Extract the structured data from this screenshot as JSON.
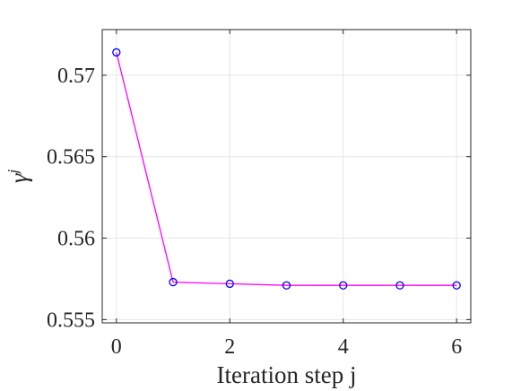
{
  "chart_data": {
    "type": "line",
    "title": "",
    "xlabel": "Iteration step j",
    "ylabel": "γ",
    "ylabel_superscript": "j",
    "xlim": [
      -0.25,
      6.25
    ],
    "ylim": [
      0.5548,
      0.5728
    ],
    "x_ticks": [
      0,
      2,
      4,
      6
    ],
    "x_tick_labels": [
      "0",
      "2",
      "4",
      "6"
    ],
    "y_ticks": [
      0.555,
      0.56,
      0.565,
      0.57
    ],
    "y_tick_labels": [
      "0.555",
      "0.56",
      "0.565",
      "0.57"
    ],
    "grid": true,
    "series": [
      {
        "x": [
          0,
          1,
          2,
          3,
          4,
          5,
          6
        ],
        "y": [
          0.5714,
          0.5573,
          0.5572,
          0.5571,
          0.5571,
          0.5571,
          0.5571
        ],
        "line_color": "#ff00ff",
        "marker": "circle",
        "marker_color": "#0000ff"
      }
    ]
  }
}
